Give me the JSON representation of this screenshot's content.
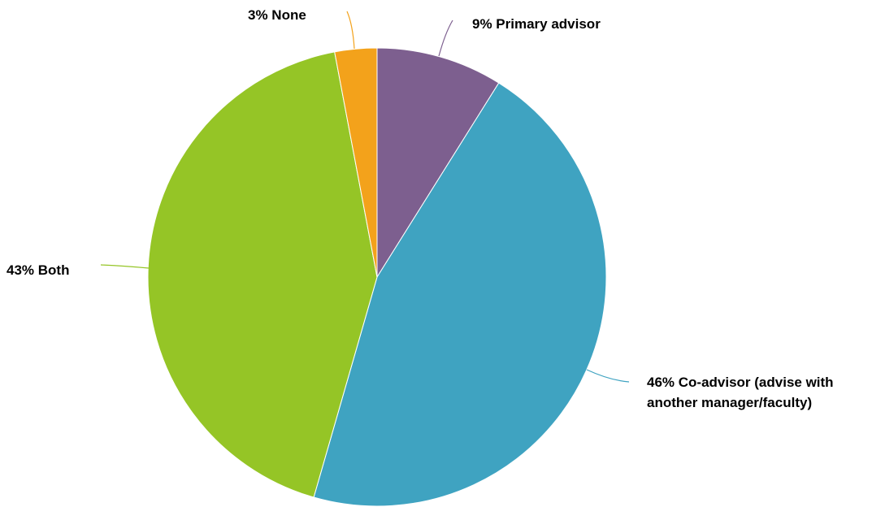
{
  "chart_data": {
    "type": "pie",
    "slices": [
      {
        "label_percent": "9%",
        "label_text": "Primary advisor",
        "label_lines": [
          "9% Primary advisor"
        ],
        "value": 9,
        "color": "#7D5F8F"
      },
      {
        "label_percent": "46%",
        "label_text": "Co-advisor (advise with another manager/faculty)",
        "label_lines": [
          "46% Co-advisor (advise with",
          "another manager/faculty)"
        ],
        "value": 46,
        "color": "#3FA3C1"
      },
      {
        "label_percent": "43%",
        "label_text": "Both",
        "label_lines": [
          "43% Both"
        ],
        "value": 43,
        "color": "#95C526"
      },
      {
        "label_percent": "3%",
        "label_text": "None",
        "label_lines": [
          "3% None"
        ],
        "value": 3,
        "color": "#F3A21B"
      }
    ],
    "start_angle_deg": 0,
    "direction": "clockwise",
    "legend": "none",
    "labels": "outside with leader lines"
  }
}
